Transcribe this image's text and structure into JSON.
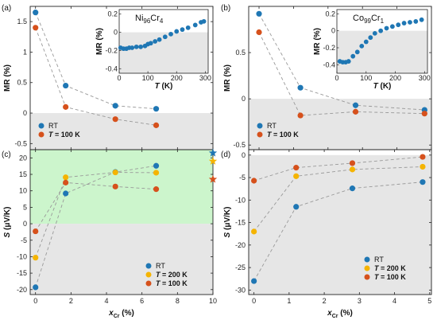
{
  "colors": {
    "rt": "#1f77b4",
    "t200": "#f5b400",
    "t100": "#d6511c",
    "shade": "#e6e6e6",
    "green": "#ccf5cc",
    "axis": "#222222",
    "dash": "#999999"
  },
  "panel_labels": [
    "(a)",
    "(b)",
    "(c)",
    "(d)"
  ],
  "axis_text": {
    "mr_label": "MR (%)",
    "s_label": "S (μV/K)",
    "s_italic": "S",
    "s_rest": " (μV/K)",
    "x_main": "x",
    "x_sub": "Cr",
    "x_unit": " (%)",
    "t_label_italic": "T",
    "t_label_rest": " (K)"
  },
  "legend_text": {
    "rt": "RT",
    "t200": "T = 200 K",
    "t100": "T = 100 K",
    "t_italic": "T",
    "t200_rest": " = 200 K",
    "t100_rest": " = 100 K"
  },
  "chart_data": [
    {
      "id": "a",
      "type": "scatter",
      "ylabel": "MR (%)",
      "xlim": [
        -0.3,
        10
      ],
      "ylim": [
        -0.6,
        1.75
      ],
      "yticks": [
        -0.5,
        0,
        0.5,
        1,
        1.5
      ],
      "ytick_labels": [
        "-0.5",
        "0",
        "0.5",
        "1",
        "1.5"
      ],
      "xticks": [
        0,
        2,
        4,
        6,
        8,
        10
      ],
      "series": [
        {
          "name": "RT",
          "color_key": "rt",
          "x": [
            0,
            1.7,
            4.5,
            6.8
          ],
          "y": [
            1.65,
            0.45,
            0.12,
            0.07
          ]
        },
        {
          "name": "T = 100 K",
          "color_key": "t100",
          "x": [
            0,
            1.7,
            4.5,
            6.8
          ],
          "y": [
            1.4,
            0.1,
            -0.1,
            -0.2
          ]
        }
      ],
      "inset": {
        "title_main": "Ni",
        "title_sub1": "96",
        "title_mid": "Cr",
        "title_sub2": "4",
        "ylabel": "MR (%)",
        "xlabel": "T (K)",
        "xlim": [
          0,
          310
        ],
        "ylim": [
          -0.45,
          0.25
        ],
        "yticks": [
          -0.4,
          -0.2,
          0,
          0.2
        ],
        "ytick_labels": [
          "-0.4",
          "-0.2",
          "0",
          "0.2"
        ],
        "xticks": [
          0,
          100,
          200,
          300
        ],
        "x": [
          5,
          15,
          25,
          35,
          45,
          60,
          75,
          90,
          100,
          110,
          125,
          140,
          160,
          180,
          200,
          220,
          240,
          265,
          285,
          295
        ],
        "y": [
          -0.17,
          -0.18,
          -0.18,
          -0.17,
          -0.17,
          -0.16,
          -0.16,
          -0.15,
          -0.13,
          -0.12,
          -0.1,
          -0.08,
          -0.05,
          -0.02,
          0.01,
          0.03,
          0.05,
          0.08,
          0.11,
          0.12
        ]
      }
    },
    {
      "id": "b",
      "type": "scatter",
      "ylabel": "MR (%)",
      "xlim": [
        -0.3,
        5
      ],
      "ylim": [
        -0.55,
        1.0
      ],
      "yticks": [
        -0.5,
        0,
        0.5
      ],
      "ytick_labels": [
        "-0.5",
        "0",
        "0.5"
      ],
      "xticks": [
        0,
        1,
        2,
        3,
        4,
        5
      ],
      "series": [
        {
          "name": "RT",
          "color_key": "rt",
          "x": [
            0,
            1.2,
            2.8,
            4.8
          ],
          "y": [
            0.92,
            0.12,
            -0.07,
            -0.12
          ]
        },
        {
          "name": "T = 100 K",
          "color_key": "t100",
          "x": [
            0,
            1.2,
            2.8,
            4.8
          ],
          "y": [
            0.72,
            -0.18,
            -0.14,
            -0.16
          ]
        }
      ],
      "inset": {
        "title_main": "Co",
        "title_sub1": "99",
        "title_mid": "Cr",
        "title_sub2": "1",
        "ylabel": "MR (%)",
        "xlabel": "T (K)",
        "xlim": [
          0,
          310
        ],
        "ylim": [
          -0.5,
          0.25
        ],
        "yticks": [
          -0.4,
          -0.2,
          0,
          0.2
        ],
        "ytick_labels": [
          "-0.4",
          "-0.2",
          "0",
          "0.2"
        ],
        "xticks": [
          0,
          100,
          200,
          300
        ],
        "x": [
          10,
          20,
          30,
          40,
          55,
          70,
          85,
          100,
          115,
          130,
          150,
          170,
          190,
          210,
          230,
          250,
          270,
          290
        ],
        "y": [
          -0.36,
          -0.37,
          -0.37,
          -0.36,
          -0.3,
          -0.25,
          -0.18,
          -0.13,
          -0.08,
          -0.03,
          0.0,
          0.03,
          0.05,
          0.07,
          0.09,
          0.1,
          0.11,
          0.13
        ]
      }
    },
    {
      "id": "c",
      "type": "scatter",
      "ylabel": "S (μV/K)",
      "xlabel": "x Cr (%)",
      "xlim": [
        -0.3,
        10
      ],
      "ylim": [
        -21.5,
        22.5
      ],
      "yticks": [
        -20,
        -15,
        -10,
        -5,
        0,
        5,
        10,
        15,
        20
      ],
      "ytick_labels": [
        "-20",
        "-15",
        "-10",
        "-5",
        "0",
        "5",
        "10",
        "15",
        "20"
      ],
      "xticks": [
        0,
        2,
        4,
        6,
        8,
        10
      ],
      "xtick_labels": [
        "0",
        "2",
        "4",
        "6",
        "8",
        "10"
      ],
      "series": [
        {
          "name": "RT",
          "color_key": "rt",
          "x": [
            0,
            1.7,
            4.5,
            6.8
          ],
          "y": [
            -19.3,
            9.2,
            15.7,
            17.6
          ]
        },
        {
          "name": "T = 200 K",
          "color_key": "t200",
          "x": [
            0,
            1.7,
            4.5,
            6.8
          ],
          "y": [
            -10.3,
            14.1,
            15.6,
            15.5
          ]
        },
        {
          "name": "T = 100 K",
          "color_key": "t100",
          "x": [
            0,
            1.7,
            4.5,
            6.8
          ],
          "y": [
            -2.3,
            12.5,
            11.3,
            10.5
          ]
        }
      ],
      "stars": [
        {
          "color_key": "rt",
          "x": 10,
          "y": 21.5
        },
        {
          "color_key": "t200",
          "x": 10,
          "y": 19
        },
        {
          "color_key": "t100",
          "x": 10,
          "y": 13.5
        }
      ]
    },
    {
      "id": "d",
      "type": "scatter",
      "ylabel": "S (μV/K)",
      "xlabel": "x Cr (%)",
      "xlim": [
        -0.15,
        5.05
      ],
      "ylim": [
        -31,
        1.2
      ],
      "yticks": [
        -30,
        -25,
        -20,
        -15,
        -10,
        -5,
        0
      ],
      "ytick_labels": [
        "-30",
        "-25",
        "-20",
        "-15",
        "-10",
        "-5",
        "0"
      ],
      "xticks": [
        0,
        1,
        2,
        3,
        4,
        5
      ],
      "xtick_labels": [
        "0",
        "1",
        "2",
        "3",
        "4",
        "5"
      ],
      "series": [
        {
          "name": "RT",
          "color_key": "rt",
          "x": [
            0,
            1.2,
            2.8,
            4.8
          ],
          "y": [
            -28,
            -11.5,
            -7.4,
            -6.0
          ]
        },
        {
          "name": "T = 200 K",
          "color_key": "t200",
          "x": [
            0,
            1.2,
            2.8,
            4.8
          ],
          "y": [
            -17.0,
            -4.7,
            -3.2,
            -2.6
          ]
        },
        {
          "name": "T = 100 K",
          "color_key": "t100",
          "x": [
            0,
            1.2,
            2.8,
            4.8
          ],
          "y": [
            -5.7,
            -2.8,
            -1.8,
            -0.4
          ]
        }
      ]
    }
  ]
}
